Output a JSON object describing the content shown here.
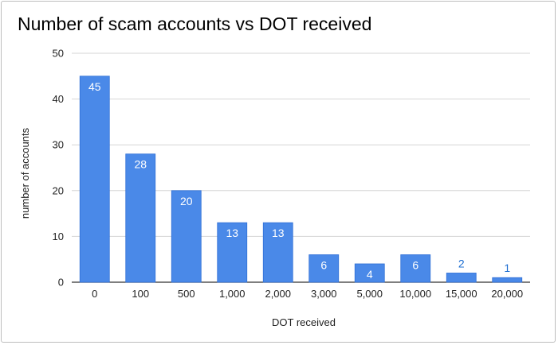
{
  "chart_data": {
    "type": "bar",
    "title": "Number of scam accounts vs DOT received",
    "xlabel": "DOT received",
    "ylabel": "number of accounts",
    "categories": [
      "0",
      "100",
      "500",
      "1,000",
      "2,000",
      "3,000",
      "5,000",
      "10,000",
      "15,000",
      "20,000"
    ],
    "values": [
      45,
      28,
      20,
      13,
      13,
      6,
      4,
      6,
      2,
      1
    ],
    "ylim": [
      0,
      50
    ],
    "yticks": [
      0,
      10,
      20,
      30,
      40,
      50
    ],
    "grid": true,
    "legend": "none",
    "bar_color": "#4a89e8",
    "label_inside_color": "#ffffff",
    "label_outside_color": "#1f6fd1"
  }
}
